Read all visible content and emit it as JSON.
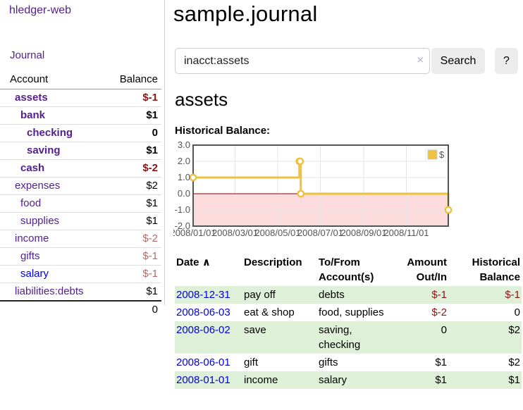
{
  "app_title": "hledger-web",
  "colors": {
    "link_purple": "#54208f",
    "link_blue": "#0000e0",
    "negative": "#8b1414",
    "muted_negative": "#b06a6a",
    "row_stripe_green": "#dff0d8",
    "chart_series_gold": "#EDC240",
    "chart_zero_line": "#8b0000",
    "chart_negative_region": "#fbdbdb"
  },
  "sidebar": {
    "journal_link": "Journal",
    "accounts": {
      "header": {
        "account": "Account",
        "balance": "Balance"
      },
      "rows": [
        {
          "name": "assets",
          "balance": "$-1",
          "depth": 1,
          "bold": true,
          "tone": "neg"
        },
        {
          "name": "bank",
          "balance": "$1",
          "depth": 2,
          "bold": true,
          "tone": "pos"
        },
        {
          "name": "checking",
          "balance": "0",
          "depth": 3,
          "bold": true,
          "tone": "pos"
        },
        {
          "name": "saving",
          "balance": "$1",
          "depth": 3,
          "bold": true,
          "tone": "pos"
        },
        {
          "name": "cash",
          "balance": "$-2",
          "depth": 2,
          "bold": true,
          "tone": "neg"
        },
        {
          "name": "expenses",
          "balance": "$2",
          "depth": 1,
          "bold": false,
          "tone": "pos"
        },
        {
          "name": "food",
          "balance": "$1",
          "depth": 2,
          "bold": false,
          "tone": "pos"
        },
        {
          "name": "supplies",
          "balance": "$1",
          "depth": 2,
          "bold": false,
          "tone": "pos"
        },
        {
          "name": "income",
          "balance": "$-2",
          "depth": 1,
          "bold": false,
          "tone": "muted-neg"
        },
        {
          "name": "gifts",
          "balance": "$-1",
          "depth": 2,
          "bold": false,
          "tone": "muted-neg"
        },
        {
          "name": "salary",
          "balance": "$-1",
          "depth": 2,
          "bold": false,
          "tone": "muted-neg",
          "link_color": "blue"
        },
        {
          "name": "liabilities:debts",
          "balance": "$1",
          "depth": 1,
          "bold": false,
          "tone": "pos"
        }
      ],
      "total": "0"
    }
  },
  "main": {
    "title": "sample.journal",
    "search": {
      "query_value": "inacct:assets",
      "clear_glyph": "×",
      "button_label": "Search",
      "help_label": "?"
    },
    "account_heading": "assets",
    "chart_label": "Historical Balance:"
  },
  "chart_data": {
    "type": "line",
    "title": "Historical Balance",
    "style": "step",
    "series": [
      {
        "name": "$",
        "color": "#EDC240",
        "points": [
          [
            "2008-01-01",
            1
          ],
          [
            "2008-06-01",
            2
          ],
          [
            "2008-06-02",
            2
          ],
          [
            "2008-06-03",
            0
          ],
          [
            "2008-12-31",
            -1
          ]
        ]
      }
    ],
    "x_ticks": [
      "2008/01/01",
      "2008/03/01",
      "2008/05/01",
      "2008/07/01",
      "2008/09/01",
      "2008/11/01"
    ],
    "x_range": [
      "2008-01-01",
      "2008-12-31"
    ],
    "y_ticks": [
      3.0,
      2.0,
      1.0,
      0.0,
      -1.0,
      -2.0
    ],
    "ylim": [
      -2,
      3
    ],
    "grid": true,
    "legend": {
      "label": "$",
      "position": "top-right"
    },
    "negative_region": true,
    "negative_region_color": "#fbdbdb",
    "zero_line_color": "#8b0000",
    "grid_color": "#e5e5e5",
    "border_color": "#545454",
    "axis_text_color": "#545454"
  },
  "register": {
    "headers": {
      "date": "Date",
      "description": "Description",
      "accounts": "To/From Account(s)",
      "amount": "Amount Out/In",
      "balance": "Historical Balance"
    },
    "sort_glyph": "∧",
    "rows": [
      {
        "date": "2008-12-31",
        "description": "pay off",
        "accounts": "debts",
        "amount": "$-1",
        "balance": "$-1",
        "amount_negative": true,
        "balance_negative": true
      },
      {
        "date": "2008-06-03",
        "description": "eat & shop",
        "accounts": "food, supplies",
        "amount": "$-2",
        "balance": "0",
        "amount_negative": true,
        "balance_negative": false
      },
      {
        "date": "2008-06-02",
        "description": "save",
        "accounts": "saving, checking",
        "amount": "0",
        "balance": "$2",
        "amount_negative": false,
        "balance_negative": false
      },
      {
        "date": "2008-06-01",
        "description": "gift",
        "accounts": "gifts",
        "amount": "$1",
        "balance": "$2",
        "amount_negative": false,
        "balance_negative": false
      },
      {
        "date": "2008-01-01",
        "description": "income",
        "accounts": "salary",
        "amount": "$1",
        "balance": "$1",
        "amount_negative": false,
        "balance_negative": false
      }
    ]
  }
}
